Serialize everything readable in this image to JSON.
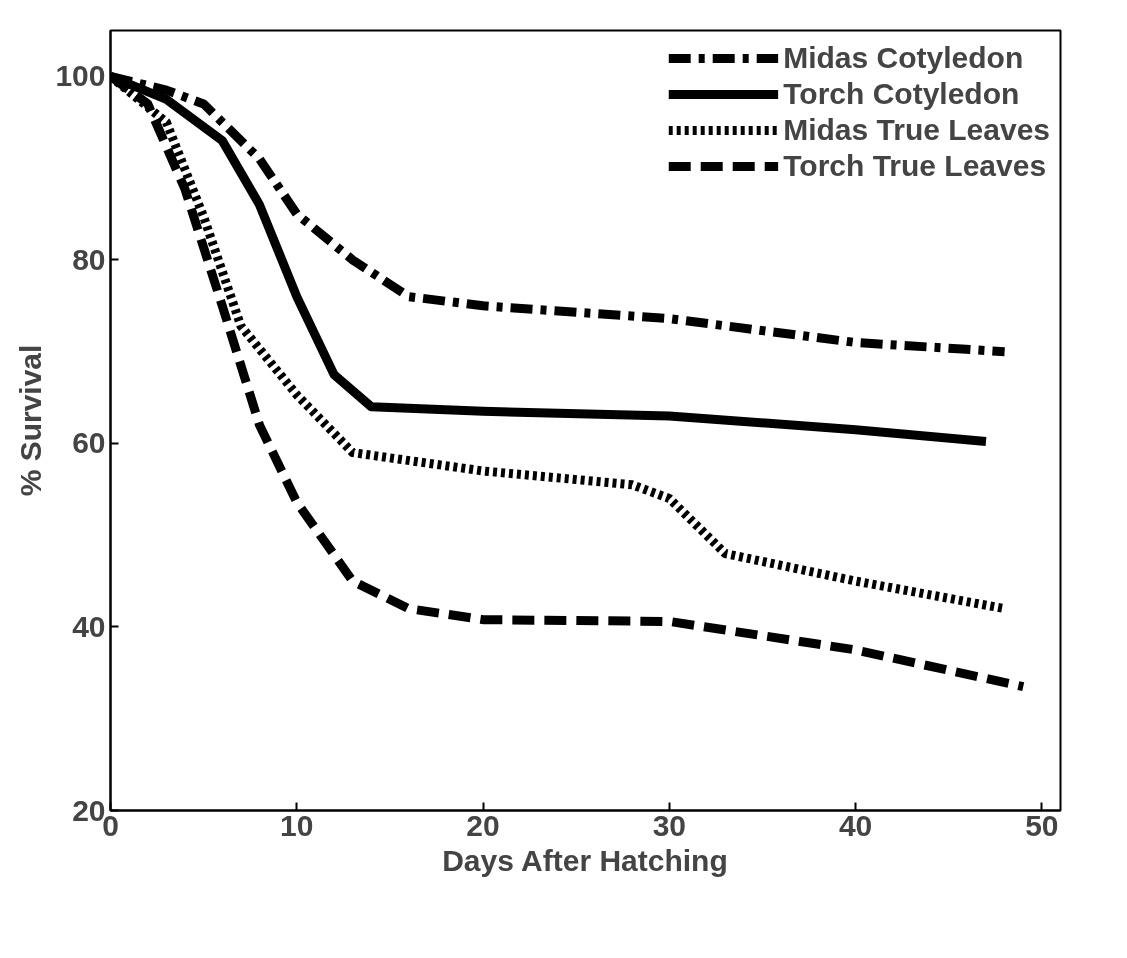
{
  "chart_data": {
    "type": "line",
    "xlabel": "Days After Hatching",
    "ylabel": "% Survival",
    "xlim": [
      0,
      51
    ],
    "ylim": [
      20,
      105
    ],
    "xticks": [
      0,
      10,
      20,
      30,
      40,
      50
    ],
    "yticks": [
      20,
      40,
      60,
      80,
      100
    ],
    "grid": false,
    "legend": "top right",
    "marker": "none",
    "series": [
      {
        "name": "Midas Cotyledon",
        "color": "#000000",
        "line_style": "dashdot",
        "x": [
          0,
          3,
          5,
          8,
          10,
          13,
          16,
          20,
          30,
          40,
          48
        ],
        "values": [
          100,
          98.5,
          97,
          91,
          85,
          80,
          76,
          75,
          73.6,
          71,
          70
        ]
      },
      {
        "name": "Torch Cotyledon",
        "color": "#000000",
        "line_style": "solid",
        "x": [
          0,
          3,
          6,
          8,
          10,
          12,
          14,
          20,
          30,
          40,
          47
        ],
        "values": [
          100,
          97.5,
          93,
          86,
          76,
          67.5,
          64,
          63.5,
          63,
          61.5,
          60.2
        ]
      },
      {
        "name": "Midas True Leaves",
        "color": "#000000",
        "line_style": "dotted",
        "x": [
          0,
          3,
          5,
          7,
          10,
          13,
          20,
          28,
          30,
          33,
          40,
          48
        ],
        "values": [
          100,
          95,
          84.7,
          72.8,
          65.3,
          59,
          57,
          55.5,
          54,
          48,
          45,
          42
        ]
      },
      {
        "name": "Torch True Leaves",
        "color": "#000000",
        "line_style": "dashed",
        "x": [
          0,
          2,
          4,
          6,
          8,
          10,
          13,
          16,
          20,
          30,
          40,
          49
        ],
        "values": [
          100,
          97,
          87.7,
          75,
          62,
          53.6,
          45,
          42,
          40.8,
          40.6,
          37.5,
          33.5
        ]
      }
    ]
  }
}
